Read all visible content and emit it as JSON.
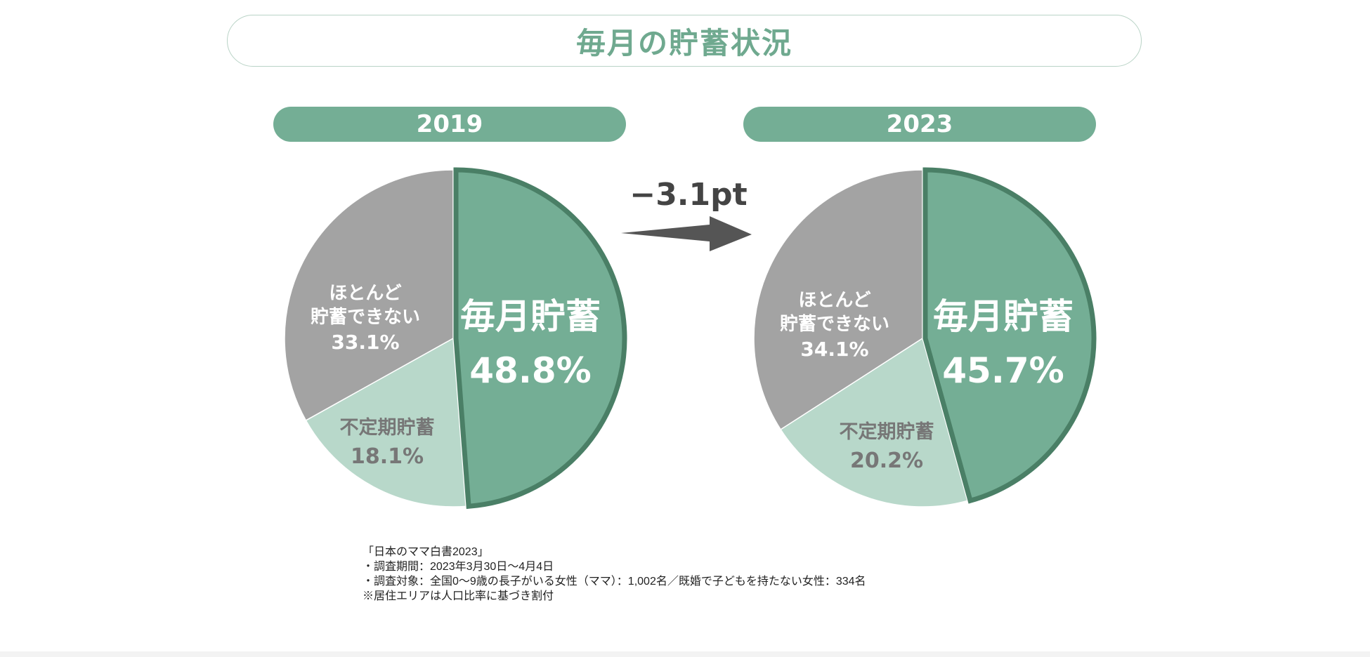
{
  "title": "毎月の貯蓄状況",
  "change_label": "−3.1pt",
  "colors": {
    "monthly": "#74ae95",
    "monthly_stroke": "#4a7f66",
    "irregular": "#b8d8ca",
    "rarely": "#a3a3a3",
    "accent": "#6fa98f",
    "arrow": "#555555"
  },
  "chart_data": [
    {
      "type": "pie",
      "title": "2019",
      "slices": [
        {
          "label": "毎月貯蓄",
          "value": 48.8,
          "value_text": "48.8%"
        },
        {
          "label": "不定期貯蓄",
          "value": 18.1,
          "value_text": "18.1%"
        },
        {
          "label_lines": [
            "ほとんど",
            "貯蓄できない"
          ],
          "label": "ほとんど貯蓄できない",
          "value": 33.1,
          "value_text": "33.1%"
        }
      ]
    },
    {
      "type": "pie",
      "title": "2023",
      "slices": [
        {
          "label": "毎月貯蓄",
          "value": 45.7,
          "value_text": "45.7%"
        },
        {
          "label": "不定期貯蓄",
          "value": 20.2,
          "value_text": "20.2%"
        },
        {
          "label_lines": [
            "ほとんど",
            "貯蓄できない"
          ],
          "label": "ほとんど貯蓄できない",
          "value": 34.1,
          "value_text": "34.1%"
        }
      ]
    }
  ],
  "footnote": [
    "「日本のママ白書2023」",
    "・調査期間：2023年3月30日〜4月4日",
    "・調査対象：全国0〜9歳の長子がいる女性（ママ）：1,002名／既婚で子どもを持たない女性：334名",
    "※居住エリアは人口比率に基づき割付"
  ]
}
